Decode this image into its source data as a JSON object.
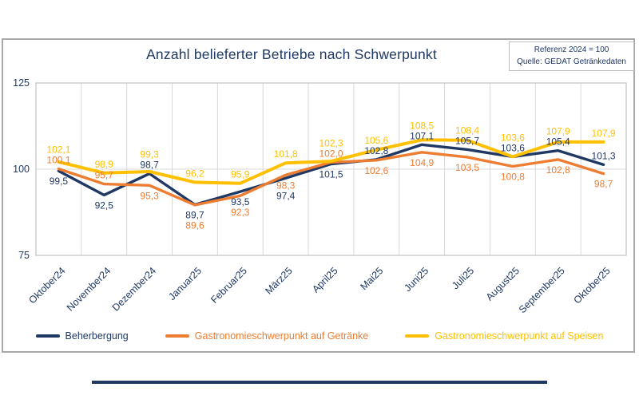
{
  "chart_data": {
    "type": "line",
    "title": "Anzahl belieferter Betriebe nach Schwerpunkt",
    "reference_lines": [
      "Referenz 2024 = 100",
      "Quelle: GEDAT Getränkedaten"
    ],
    "categories": [
      "Oktober24",
      "November24",
      "Dezember24",
      "Januar25",
      "Februar25",
      "März25",
      "April25",
      "Mai25",
      "Juni25",
      "Juli25",
      "August25",
      "September25",
      "Oktober25"
    ],
    "y_axis": {
      "ticks": [
        125,
        100,
        75
      ],
      "range": [
        75,
        125
      ],
      "reference_gridline": 100
    },
    "legend_position": "bottom",
    "value_format": "german-decimal-comma-1dp",
    "colors": {
      "navy": "#1F3864",
      "orange": "#ED7D31",
      "yellow": "#FFC000",
      "grid": "#d8d8d8",
      "frame": "#c2c2c2"
    },
    "series": [
      {
        "name": "Beherbergung",
        "color": "#1F3864",
        "values": [
          99.5,
          92.5,
          98.7,
          89.7,
          93.5,
          97.4,
          101.5,
          102.8,
          107.1,
          105.7,
          103.6,
          105.4,
          101.3
        ],
        "label_side": [
          "b",
          "b",
          "a",
          "b",
          "b",
          "b",
          "b",
          "a",
          "a",
          "a",
          "a",
          "a",
          "a"
        ]
      },
      {
        "name": "Gastronomieschwerpunkt auf Getränke",
        "color": "#ED7D31",
        "values": [
          100.1,
          95.7,
          95.3,
          89.6,
          92.3,
          98.3,
          102.0,
          102.6,
          104.9,
          103.5,
          100.8,
          102.8,
          98.7
        ],
        "label_side": [
          "a",
          "a",
          "b",
          "b",
          "b",
          "b",
          "a",
          "b",
          "b",
          "b",
          "b",
          "b",
          "b"
        ]
      },
      {
        "name": "Gastronomieschwerpunkt auf Speisen",
        "color": "#FFC000",
        "values": [
          102.1,
          98.9,
          99.3,
          96.2,
          95.9,
          101.8,
          102.3,
          105.6,
          108.5,
          108.4,
          103.6,
          107.9,
          107.9
        ],
        "label_side": [
          "a",
          "a",
          "a",
          "a",
          "a",
          "a",
          "a",
          "a",
          "a",
          "a",
          "a",
          "a",
          "a"
        ]
      }
    ]
  }
}
